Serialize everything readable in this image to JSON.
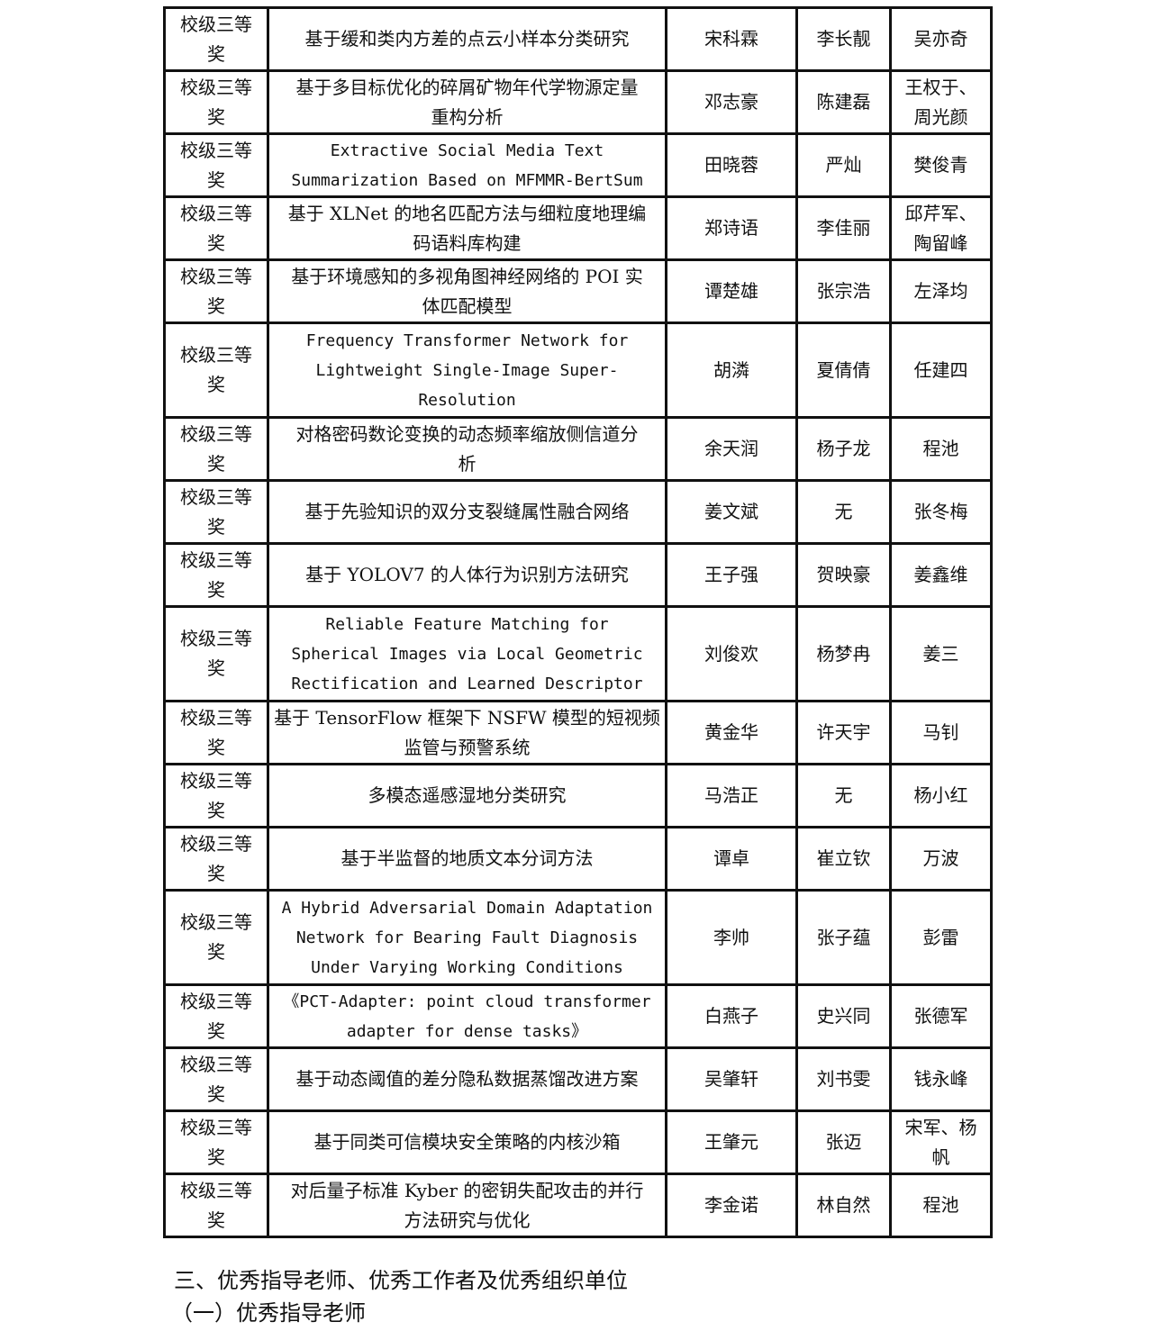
{
  "rows": [
    {
      "award": "校级三等\n奖",
      "title": "基于缓和类内方差的点云小样本分类研究",
      "student": "宋科霖",
      "member": "李长靓",
      "advisor": "吴亦奇",
      "en": false
    },
    {
      "award": "校级三等\n奖",
      "title": "基于多目标优化的碎屑矿物年代学物源定量\n重构分析",
      "student": "邓志豪",
      "member": "陈建磊",
      "advisor": "王权于、\n周光颜",
      "en": false
    },
    {
      "award": "校级三等\n奖",
      "title": "Extractive Social Media Text\nSummarization Based on MFMMR-BertSum",
      "student": "田晓蓉",
      "member": "严灿",
      "advisor": "樊俊青",
      "en": true
    },
    {
      "award": "校级三等\n奖",
      "title": "基于 XLNet 的地名匹配方法与细粒度地理编\n码语料库构建",
      "student": "郑诗语",
      "member": "李佳丽",
      "advisor": "邱芹军、\n陶留峰",
      "en": false
    },
    {
      "award": "校级三等\n奖",
      "title": "基于环境感知的多视角图神经网络的 POI 实\n体匹配模型",
      "student": "谭楚雄",
      "member": "张宗浩",
      "advisor": "左泽均",
      "en": false
    },
    {
      "award": "校级三等\n奖",
      "title": "Frequency Transformer Network for\nLightweight Single-Image Super-\nResolution",
      "student": "胡潾",
      "member": "夏倩倩",
      "advisor": "任建四",
      "en": true,
      "tall": true
    },
    {
      "award": "校级三等\n奖",
      "title": "对格密码数论变换的动态频率缩放侧信道分\n析",
      "student": "余天润",
      "member": "杨子龙",
      "advisor": "程池",
      "en": false
    },
    {
      "award": "校级三等\n奖",
      "title": "基于先验知识的双分支裂缝属性融合网络",
      "student": "姜文斌",
      "member": "无",
      "advisor": "张冬梅",
      "en": false
    },
    {
      "award": "校级三等\n奖",
      "title": "基于 YOLOV7 的人体行为识别方法研究",
      "student": "王子强",
      "member": "贺映豪",
      "advisor": "姜鑫维",
      "en": false
    },
    {
      "award": "校级三等\n奖",
      "title": "Reliable Feature Matching for\nSpherical Images via Local Geometric\nRectification and Learned Descriptor",
      "student": "刘俊欢",
      "member": "杨梦冉",
      "advisor": "姜三",
      "en": true,
      "tall": true
    },
    {
      "award": "校级三等\n奖",
      "title": "基于 TensorFlow 框架下 NSFW 模型的短视频\n监管与预警系统",
      "student": "黄金华",
      "member": "许天宇",
      "advisor": "马钊",
      "en": false
    },
    {
      "award": "校级三等\n奖",
      "title": "多模态遥感湿地分类研究",
      "student": "马浩正",
      "member": "无",
      "advisor": "杨小红",
      "en": false
    },
    {
      "award": "校级三等\n奖",
      "title": "基于半监督的地质文本分词方法",
      "student": "谭卓",
      "member": "崔立钦",
      "advisor": "万波",
      "en": false
    },
    {
      "award": "校级三等\n奖",
      "title": "A Hybrid Adversarial Domain Adaptation\nNetwork for Bearing Fault Diagnosis\nUnder Varying Working Conditions",
      "student": "李帅",
      "member": "张子蕴",
      "advisor": "彭雷",
      "en": true,
      "tall": true
    },
    {
      "award": "校级三等\n奖",
      "title": "《PCT-Adapter: point cloud transformer\nadapter for   dense tasks》",
      "student": "白燕子",
      "member": "史兴同",
      "advisor": "张德军",
      "en": true
    },
    {
      "award": "校级三等\n奖",
      "title": "基于动态阈值的差分隐私数据蒸馏改进方案",
      "student": "吴肇轩",
      "member": "刘书雯",
      "advisor": "钱永峰",
      "en": false
    },
    {
      "award": "校级三等\n奖",
      "title": "基于同类可信模块安全策略的内核沙箱",
      "student": "王肇元",
      "member": "张迈",
      "advisor": "宋军、杨\n帆",
      "en": false
    },
    {
      "award": "校级三等\n奖",
      "title": "对后量子标准 Kyber 的密钥失配攻击的并行\n方法研究与优化",
      "student": "李金诺",
      "member": "林自然",
      "advisor": "程池",
      "en": false
    }
  ],
  "section_heading": "三、优秀指导老师、优秀工作者及优秀组织单位",
  "subsection_heading": "（一）优秀指导老师"
}
